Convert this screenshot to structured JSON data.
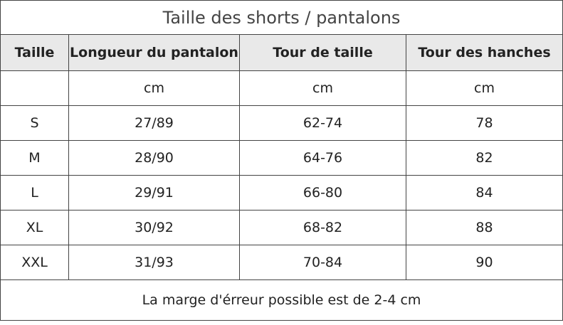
{
  "title": "Taille des shorts / pantalons",
  "header": [
    "Taille",
    "Longueur du pantalon",
    "Tour de taille",
    "Tour des hanches"
  ],
  "units": [
    "cm",
    "cm",
    "cm"
  ],
  "rows": [
    [
      "S",
      "27/89",
      "62-74",
      "78"
    ],
    [
      "M",
      "28/90",
      "64-76",
      "82"
    ],
    [
      "L",
      "29/91",
      "66-80",
      "84"
    ],
    [
      "XL",
      "30/92",
      "68-82",
      "88"
    ],
    [
      "XXL",
      "31/93",
      "70-84",
      "90"
    ]
  ],
  "footer": "La marge d'érreur possible est de 2-4 cm"
}
